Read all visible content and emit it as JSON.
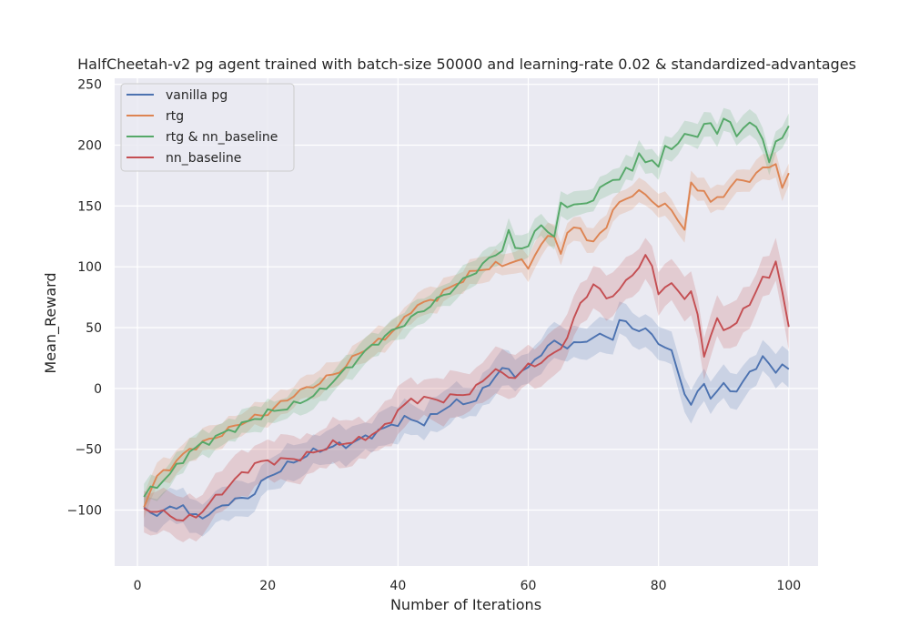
{
  "chart_data": {
    "type": "line",
    "title": "HalfCheetah-v2 pg agent trained with batch-size 50000 and learning-rate 0.02 & standardized-advantages",
    "xlabel": "Number of Iterations",
    "ylabel": "Mean_Reward",
    "xlim": [
      -3.5,
      104.5
    ],
    "ylim": [
      -146,
      255
    ],
    "xticks": [
      0,
      20,
      40,
      60,
      80,
      100
    ],
    "yticks": [
      -100,
      -50,
      0,
      50,
      100,
      150,
      200,
      250
    ],
    "xtick_labels": [
      "0",
      "20",
      "40",
      "60",
      "80",
      "100"
    ],
    "ytick_labels": [
      "−100",
      "−50",
      "0",
      "50",
      "100",
      "150",
      "200",
      "250"
    ],
    "grid": true,
    "legend_position": "top-left",
    "x": {
      "start": 1,
      "end": 100
    },
    "series": [
      {
        "name": "vanilla pg",
        "color": "#4c72b0",
        "band_width": 14,
        "keypoints": [
          [
            1,
            -100
          ],
          [
            3,
            -103
          ],
          [
            7,
            -95
          ],
          [
            8,
            -105
          ],
          [
            11,
            -104
          ],
          [
            14,
            -93
          ],
          [
            17,
            -90
          ],
          [
            20,
            -73
          ],
          [
            24,
            -60
          ],
          [
            28,
            -50
          ],
          [
            33,
            -45
          ],
          [
            38,
            -33
          ],
          [
            41,
            -25
          ],
          [
            44,
            -28
          ],
          [
            48,
            -13
          ],
          [
            52,
            -10
          ],
          [
            54,
            5
          ],
          [
            56,
            16
          ],
          [
            58,
            12
          ],
          [
            60,
            16
          ],
          [
            62,
            30
          ],
          [
            64,
            38
          ],
          [
            66,
            35
          ],
          [
            68,
            37
          ],
          [
            70,
            43
          ],
          [
            73,
            42
          ],
          [
            74,
            56
          ],
          [
            76,
            50
          ],
          [
            78,
            48
          ],
          [
            80,
            38
          ],
          [
            81,
            35
          ],
          [
            82,
            29
          ],
          [
            84,
            -3
          ],
          [
            85,
            -13
          ],
          [
            86,
            -5
          ],
          [
            87,
            5
          ],
          [
            88,
            -7
          ],
          [
            90,
            2
          ],
          [
            92,
            -2
          ],
          [
            94,
            12
          ],
          [
            96,
            26
          ],
          [
            98,
            12
          ],
          [
            99,
            23
          ],
          [
            100,
            14
          ]
        ]
      },
      {
        "name": "rtg",
        "color": "#dd8452",
        "band_width": 10,
        "keypoints": [
          [
            1,
            -95
          ],
          [
            3,
            -73
          ],
          [
            6,
            -60
          ],
          [
            8,
            -50
          ],
          [
            12,
            -40
          ],
          [
            16,
            -28
          ],
          [
            20,
            -20
          ],
          [
            24,
            -5
          ],
          [
            28,
            5
          ],
          [
            32,
            18
          ],
          [
            34,
            30
          ],
          [
            36,
            35
          ],
          [
            40,
            50
          ],
          [
            42,
            65
          ],
          [
            46,
            75
          ],
          [
            50,
            90
          ],
          [
            52,
            97
          ],
          [
            56,
            102
          ],
          [
            58,
            105
          ],
          [
            60,
            101
          ],
          [
            62,
            118
          ],
          [
            64,
            128
          ],
          [
            65,
            110
          ],
          [
            66,
            127
          ],
          [
            68,
            135
          ],
          [
            69,
            120
          ],
          [
            70,
            120
          ],
          [
            72,
            135
          ],
          [
            74,
            153
          ],
          [
            76,
            160
          ],
          [
            78,
            160
          ],
          [
            80,
            150
          ],
          [
            82,
            148
          ],
          [
            84,
            130
          ],
          [
            85,
            167
          ],
          [
            87,
            163
          ],
          [
            88,
            152
          ],
          [
            90,
            160
          ],
          [
            92,
            170
          ],
          [
            94,
            172
          ],
          [
            96,
            180
          ],
          [
            97,
            183
          ],
          [
            98,
            186
          ],
          [
            99,
            163
          ],
          [
            100,
            176
          ]
        ]
      },
      {
        "name": "rtg & nn_baseline",
        "color": "#55a868",
        "band_width": 10,
        "keypoints": [
          [
            1,
            -88
          ],
          [
            3,
            -80
          ],
          [
            6,
            -65
          ],
          [
            8,
            -52
          ],
          [
            12,
            -40
          ],
          [
            16,
            -30
          ],
          [
            20,
            -20
          ],
          [
            24,
            -14
          ],
          [
            28,
            -3
          ],
          [
            32,
            15
          ],
          [
            36,
            35
          ],
          [
            40,
            50
          ],
          [
            44,
            65
          ],
          [
            48,
            80
          ],
          [
            52,
            97
          ],
          [
            56,
            115
          ],
          [
            57,
            128
          ],
          [
            58,
            115
          ],
          [
            60,
            118
          ],
          [
            62,
            135
          ],
          [
            64,
            125
          ],
          [
            65,
            150
          ],
          [
            67,
            152
          ],
          [
            69,
            150
          ],
          [
            71,
            165
          ],
          [
            73,
            170
          ],
          [
            75,
            180
          ],
          [
            76,
            178
          ],
          [
            77,
            193
          ],
          [
            79,
            185
          ],
          [
            80,
            182
          ],
          [
            81,
            200
          ],
          [
            83,
            198
          ],
          [
            84,
            210
          ],
          [
            86,
            208
          ],
          [
            88,
            220
          ],
          [
            89,
            210
          ],
          [
            90,
            222
          ],
          [
            92,
            210
          ],
          [
            94,
            218
          ],
          [
            96,
            208
          ],
          [
            97,
            185
          ],
          [
            98,
            202
          ],
          [
            99,
            205
          ],
          [
            100,
            219
          ]
        ]
      },
      {
        "name": "nn_baseline",
        "color": "#c44e52",
        "band_width": 18,
        "keypoints": [
          [
            1,
            -100
          ],
          [
            3,
            -100
          ],
          [
            5,
            -105
          ],
          [
            7,
            -108
          ],
          [
            9,
            -105
          ],
          [
            12,
            -90
          ],
          [
            15,
            -75
          ],
          [
            18,
            -62
          ],
          [
            20,
            -60
          ],
          [
            24,
            -58
          ],
          [
            26,
            -55
          ],
          [
            30,
            -46
          ],
          [
            34,
            -43
          ],
          [
            38,
            -32
          ],
          [
            40,
            -18
          ],
          [
            42,
            -10
          ],
          [
            44,
            -8
          ],
          [
            46,
            -10
          ],
          [
            48,
            -7
          ],
          [
            50,
            -5
          ],
          [
            52,
            0
          ],
          [
            54,
            12
          ],
          [
            55,
            17
          ],
          [
            56,
            10
          ],
          [
            58,
            10
          ],
          [
            60,
            18
          ],
          [
            62,
            22
          ],
          [
            64,
            28
          ],
          [
            66,
            42
          ],
          [
            68,
            70
          ],
          [
            70,
            85
          ],
          [
            72,
            75
          ],
          [
            74,
            80
          ],
          [
            76,
            95
          ],
          [
            77,
            100
          ],
          [
            78,
            108
          ],
          [
            79,
            100
          ],
          [
            80,
            80
          ],
          [
            82,
            85
          ],
          [
            84,
            76
          ],
          [
            85,
            78
          ],
          [
            86,
            60
          ],
          [
            87,
            27
          ],
          [
            88,
            45
          ],
          [
            89,
            55
          ],
          [
            90,
            48
          ],
          [
            92,
            55
          ],
          [
            94,
            70
          ],
          [
            96,
            92
          ],
          [
            97,
            88
          ],
          [
            98,
            107
          ],
          [
            99,
            80
          ],
          [
            100,
            50
          ]
        ]
      }
    ]
  }
}
